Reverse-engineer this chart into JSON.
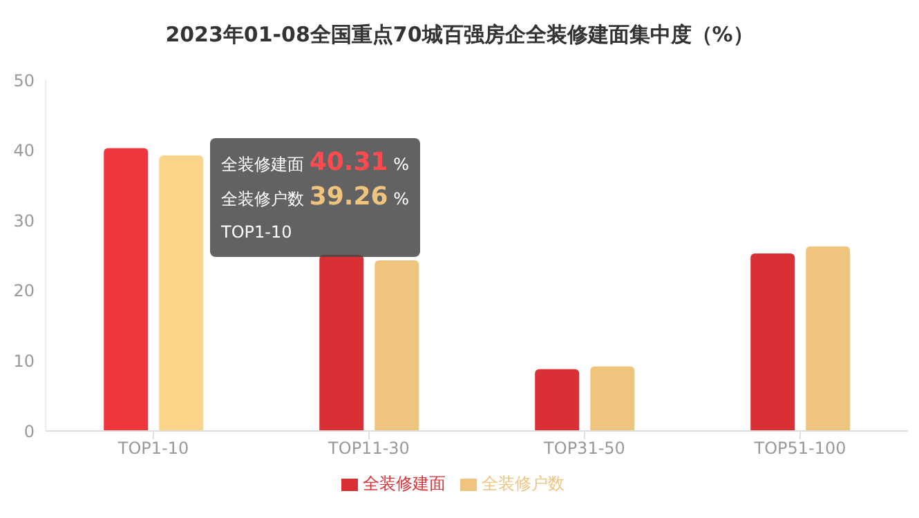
{
  "chart_data": {
    "type": "bar",
    "title": "2023年01-08全国重点70城百强房企全装修建面集中度（%）",
    "categories": [
      "TOP1-10",
      "TOP11-30",
      "TOP31-50",
      "TOP51-100"
    ],
    "series": [
      {
        "name": "全装修建面",
        "color": "#d93035",
        "colors": [
          "#ef363c",
          "#d93035",
          "#d93035",
          "#d93035"
        ],
        "values": [
          40.31,
          25.1,
          8.8,
          25.3
        ]
      },
      {
        "name": "全装修户数",
        "color": "#efc47e",
        "colors": [
          "#fdd58a",
          "#efc47e",
          "#efc47e",
          "#efc47e"
        ],
        "values": [
          39.26,
          24.3,
          9.2,
          26.3
        ]
      }
    ],
    "ylim": [
      0,
      50
    ],
    "yticks": [
      0,
      10,
      20,
      30,
      40,
      50
    ],
    "grid": false,
    "legend": "bottom",
    "annotations": [
      "全装修建面 40.31 %",
      "全装修户数 39.26 %",
      "TOP1-10"
    ]
  }
}
